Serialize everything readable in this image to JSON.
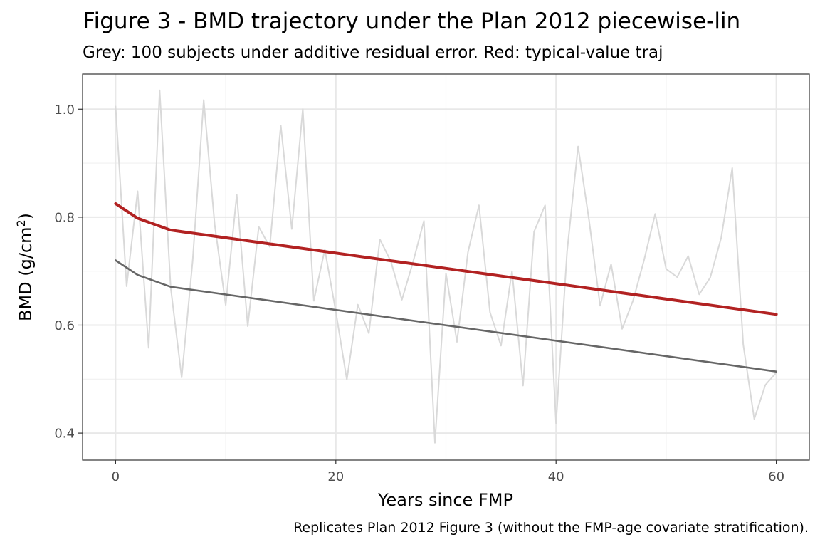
{
  "chart_data": {
    "type": "line",
    "title": "Figure 3 - BMD trajectory under the Plan 2012 piecewise-lin",
    "subtitle": "Grey: 100 subjects under additive residual error. Red: typical-value traj",
    "caption": "Replicates Plan 2012 Figure 3 (without the FMP-age covariate stratification).",
    "xlabel": "Years since FMP",
    "ylabel": "BMD (g/cm",
    "ylabel_superscript": "2",
    "ylabel_close": ")",
    "xlim": [
      -3,
      63
    ],
    "ylim": [
      0.35,
      1.065
    ],
    "x_ticks": [
      0,
      20,
      40,
      60
    ],
    "x_tick_labels": [
      "0",
      "20",
      "40",
      "60"
    ],
    "y_ticks": [
      0.4,
      0.6,
      0.8,
      1.0
    ],
    "y_tick_labels": [
      "0.4",
      "0.6",
      "0.8",
      "1.0"
    ],
    "grid": true,
    "series": [
      {
        "color": "#d9d9d9",
        "x": [
          0,
          1,
          2,
          3,
          4,
          5,
          6,
          7,
          8,
          9,
          10,
          11,
          12,
          13,
          14,
          15,
          16,
          17,
          18,
          19,
          20,
          21,
          22,
          23,
          24,
          25,
          26,
          27,
          28,
          29,
          30,
          31,
          32,
          33,
          34,
          35,
          36,
          37,
          38,
          39,
          40,
          41,
          42,
          43,
          44,
          45,
          46,
          47,
          48,
          49,
          50,
          51,
          52,
          53,
          54,
          55,
          56,
          57,
          58,
          59,
          60
        ],
        "values": [
          1.005,
          0.672,
          0.848,
          0.558,
          1.035,
          0.67,
          0.503,
          0.72,
          1.017,
          0.786,
          0.637,
          0.842,
          0.598,
          0.782,
          0.745,
          0.97,
          0.778,
          1.0,
          0.645,
          0.74,
          0.625,
          0.499,
          0.638,
          0.585,
          0.759,
          0.718,
          0.647,
          0.716,
          0.793,
          0.382,
          0.696,
          0.569,
          0.735,
          0.822,
          0.624,
          0.562,
          0.7,
          0.488,
          0.773,
          0.822,
          0.418,
          0.736,
          0.931,
          0.794,
          0.636,
          0.713,
          0.593,
          0.646,
          0.721,
          0.806,
          0.704,
          0.689,
          0.728,
          0.657,
          0.688,
          0.762,
          0.891,
          0.564,
          0.426,
          0.489,
          0.512
        ]
      },
      {
        "color": "#666666",
        "x": [
          0,
          2,
          5,
          60
        ],
        "values": [
          0.72,
          0.693,
          0.671,
          0.514
        ]
      },
      {
        "color": "#b22222",
        "x": [
          0,
          2,
          5,
          60
        ],
        "values": [
          0.825,
          0.798,
          0.776,
          0.62
        ]
      }
    ]
  }
}
